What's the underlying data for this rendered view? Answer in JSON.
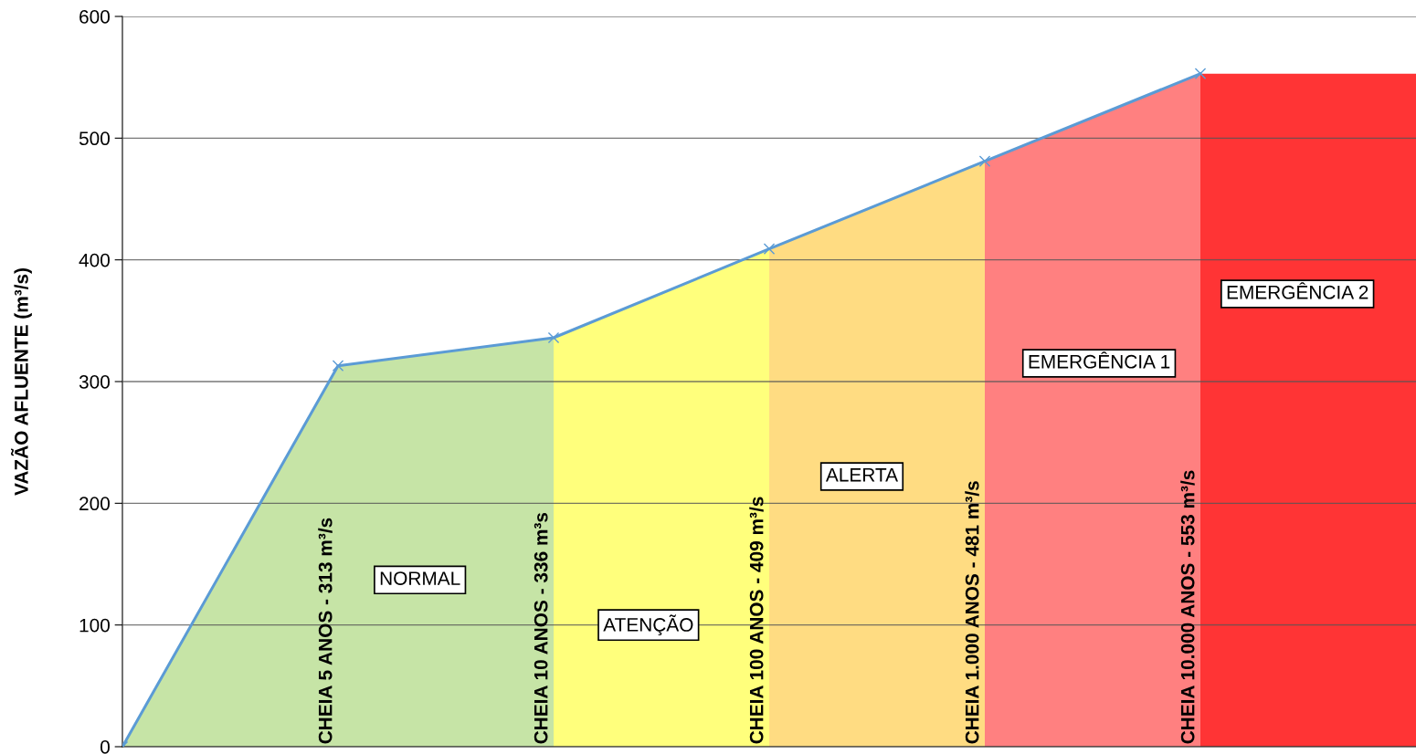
{
  "chart_data": {
    "type": "line",
    "ylabel": "VAZÃO AFLUENTE (m³/s)",
    "categories": [
      null,
      null,
      null,
      null,
      null,
      null,
      null
    ],
    "series": [
      {
        "type": "area",
        "color": "#c6e4a6",
        "values": [
          0,
          313,
          336,
          null,
          null,
          null,
          null
        ]
      },
      {
        "type": "area",
        "color": "#ffff7c",
        "values": [
          null,
          null,
          336,
          409,
          null,
          null,
          null
        ]
      },
      {
        "type": "area",
        "color": "#ffdc82",
        "values": [
          null,
          null,
          null,
          409,
          481,
          null,
          null
        ]
      },
      {
        "type": "area",
        "color": "#ff8080",
        "values": [
          null,
          null,
          null,
          null,
          481,
          553,
          null
        ]
      },
      {
        "type": "area",
        "color": "#ff3435",
        "values": [
          null,
          null,
          null,
          null,
          null,
          553,
          553
        ]
      },
      {
        "color": "#5b9bd5",
        "marker": "cross",
        "values": [
          0,
          313,
          336,
          409,
          481,
          553,
          null
        ]
      }
    ],
    "annotations": [
      "CHEIA 5 ANOS - 313 m³/s",
      "CHEIA 10 ANOS - 336 m³s",
      "CHEIA 100 ANOS - 409 m³/s",
      "CHEIA 1.000 ANOS - 481 m³/s",
      "CHEIA 10.000 ANOS - 553 m³/s",
      "NORMAL",
      "ATENÇÃO",
      "ALERTA",
      "EMERGÊNCIA 1",
      "EMERGÊNCIA 2"
    ],
    "ylim": [
      0,
      600
    ],
    "yticks": [
      0,
      100,
      200,
      300,
      400,
      500,
      600
    ],
    "grid": "y",
    "legend": false
  }
}
